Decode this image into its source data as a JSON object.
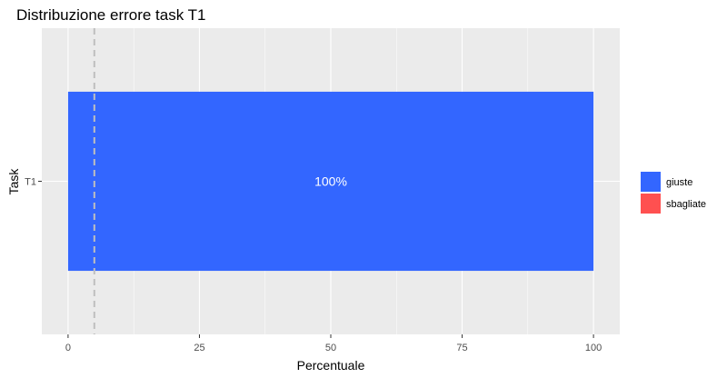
{
  "chart_data": {
    "type": "bar",
    "orientation": "horizontal",
    "stacked": true,
    "title": "Distribuzione errore task T1",
    "xlabel": "Percentuale",
    "ylabel": "Task",
    "categories": [
      "T1"
    ],
    "series": [
      {
        "name": "giuste",
        "values": [
          100
        ],
        "color": "#3366ff",
        "label": "100%"
      },
      {
        "name": "sbagliate",
        "values": [
          0
        ],
        "color": "#ff5050",
        "label": ""
      }
    ],
    "xlim": [
      -5,
      105
    ],
    "x_ticks": [
      0,
      25,
      50,
      75,
      100
    ],
    "x_tick_labels": [
      "0",
      "25",
      "50",
      "75",
      "100"
    ],
    "reference_line": {
      "x": 5,
      "style": "dashed",
      "color": "#bfbfbf"
    },
    "grid": true,
    "panel_background": "#ebebeb",
    "grid_color": "#ffffff",
    "legend": {
      "position": "right"
    }
  }
}
